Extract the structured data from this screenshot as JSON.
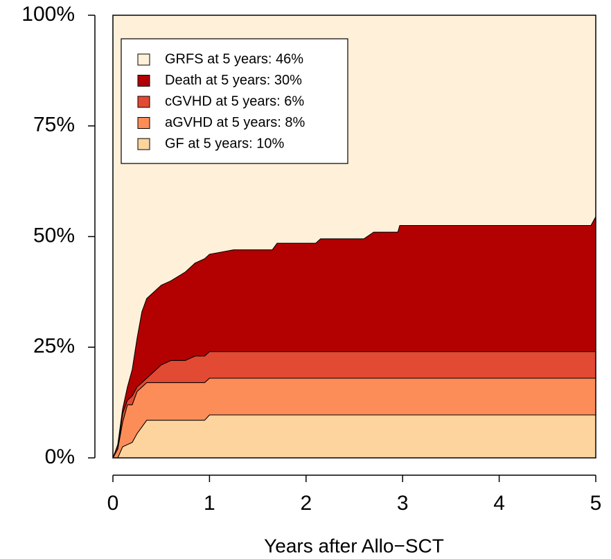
{
  "chart_data": {
    "type": "stacked-area",
    "x_label": "Years after Allo−SCT",
    "x": [
      0,
      0.05,
      0.1,
      0.15,
      0.2,
      0.25,
      0.3,
      0.35,
      0.5,
      0.6,
      0.75,
      0.85,
      0.95,
      1.0,
      1.25,
      1.65,
      1.7,
      2.1,
      2.15,
      2.6,
      2.7,
      2.95,
      2.97,
      4.95,
      5
    ],
    "series": [
      {
        "name": "GF at 5 years: 10%",
        "color": "#fdd49e",
        "values": [
          0,
          0,
          2.5,
          3,
          3.5,
          5.5,
          7,
          8.5,
          8.5,
          8.5,
          8.5,
          8.5,
          8.5,
          9.7,
          9.7,
          9.7,
          9.7,
          9.7,
          9.7,
          9.7,
          9.7,
          9.7,
          9.7,
          9.7,
          9.7
        ]
      },
      {
        "name": "aGVHD at 5 years: 8%",
        "color": "#fc8d59",
        "values": [
          0,
          2,
          5.5,
          9,
          8.5,
          9.5,
          9,
          8.5,
          8.5,
          8.5,
          8.5,
          8.5,
          8.5,
          8.3,
          8.3,
          8.3,
          8.3,
          8.3,
          8.3,
          8.3,
          8.3,
          8.3,
          8.3,
          8.3,
          8.3
        ]
      },
      {
        "name": "cGVHD at 5 years: 6%",
        "color": "#e34a33",
        "values": [
          0,
          0,
          2,
          1,
          2,
          1,
          1,
          1,
          4,
          5,
          5,
          6,
          6,
          6,
          6,
          6,
          6,
          6,
          6,
          6,
          6,
          6,
          6,
          6,
          6
        ]
      },
      {
        "name": "Death at 5 years: 30%",
        "color": "#b30000",
        "values": [
          0,
          1,
          1,
          3,
          6,
          11,
          16,
          18,
          18,
          18,
          20,
          21,
          22,
          22,
          23,
          23,
          24.5,
          24.5,
          25.5,
          25.5,
          27,
          27,
          28.5,
          28.5,
          30.5
        ]
      },
      {
        "name": "GRFS at 5 years: 46%",
        "color": "#fef0d9",
        "values": [
          100,
          97,
          89,
          84,
          80,
          73,
          67,
          64,
          61,
          60,
          58,
          56,
          55,
          54,
          53,
          53,
          51.5,
          51.5,
          50.5,
          50.5,
          49,
          49,
          47.5,
          47.5,
          45.5
        ]
      }
    ],
    "xlim": [
      0,
      5
    ],
    "xticks": [
      0,
      1,
      2,
      3,
      4,
      5
    ],
    "ylim": [
      0,
      100
    ],
    "yticks": [
      {
        "value": 0,
        "label": "0%"
      },
      {
        "value": 25,
        "label": "25%"
      },
      {
        "value": 50,
        "label": "50%"
      },
      {
        "value": 75,
        "label": "75%"
      },
      {
        "value": 100,
        "label": "100%"
      }
    ],
    "legend": "top-left"
  }
}
